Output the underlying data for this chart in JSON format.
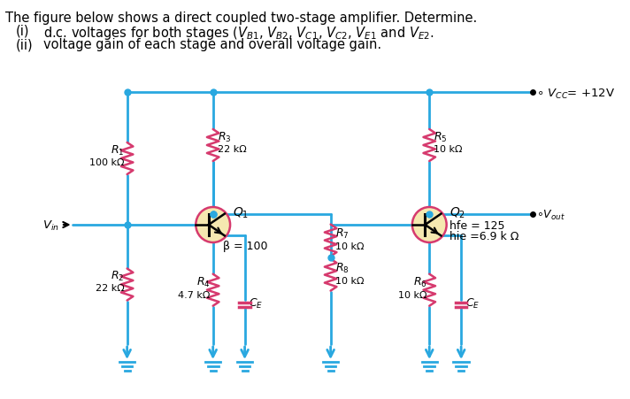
{
  "wire_color": "#29a8e0",
  "resistor_color": "#d63a6e",
  "transistor_fill": "#f5e8b0",
  "transistor_edge": "#d63a6e",
  "text_color": "#000000",
  "vcc_label": "$V_{CC}$ = +12V",
  "vout_label": "$\\circ V_{out}$",
  "vin_label": "$V_{in}$",
  "R1_label": "$R_1$",
  "R1_val": "100 kΩ",
  "R2_label": "$R_2$",
  "R2_val": "22 kΩ",
  "R3_label": "$R_3$",
  "R3_val": "22 kΩ",
  "R4_label": "$R_4$",
  "R4_val": "4.7 kΩ",
  "R5_label": "$R_5$",
  "R5_val": "10 kΩ",
  "R6_label": "$R_6$",
  "R6_val": "10 kΩ",
  "R7_label": "$R_7$",
  "R7_val": "10 kΩ",
  "R8_label": "$R_8$",
  "R8_val": "10 kΩ",
  "Q1_label": "$Q_1$",
  "Q1_beta": "β = 100",
  "Q2_label": "$Q_2$",
  "Q2_hfe": "hfe = 125",
  "Q2_hie": "hie =6.9 k Ω",
  "CE_label": "$C_E$",
  "header1": "The figure below shows a direct coupled two-stage amplifier. Determine.",
  "header2i": "(i)",
  "header2text": "d.c. voltages for both stages ($V_{B1}$, $V_{B2}$, $V_{C1}$, $V_{C2}$, $V_{E1}$ and $V_{E2}$.",
  "header3i": "(ii)",
  "header3text": "voltage gain of each stage and overall voltage gain."
}
